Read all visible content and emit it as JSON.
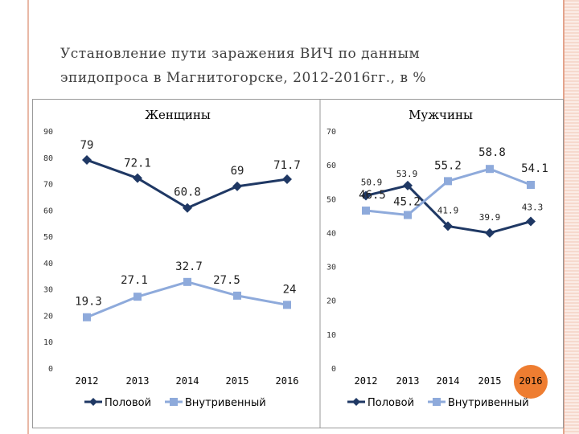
{
  "slide": {
    "title_line1": "Установление пути заражения ВИЧ по данным",
    "title_line2": "эпидопроса в Магнитогорске, 2012-2016гг., в %"
  },
  "colors": {
    "sexual": "#1f3864",
    "injection": "#8eaadb",
    "highlight": "#ee7d31"
  },
  "chart_data": [
    {
      "type": "line",
      "title": "Женщины",
      "x": [
        "2012",
        "2013",
        "2014",
        "2015",
        "2016"
      ],
      "ylim": [
        0,
        90
      ],
      "yticks": [
        0,
        10,
        20,
        30,
        40,
        50,
        60,
        70,
        80,
        90
      ],
      "grid": false,
      "legend": "bottom",
      "series": [
        {
          "name": "Половой",
          "values": [
            79,
            72.1,
            60.8,
            69,
            71.7
          ],
          "labels": [
            "79",
            "72.1",
            "60.8",
            "69",
            "71.7"
          ]
        },
        {
          "name": "Внутривенный",
          "values": [
            19.3,
            27.1,
            32.7,
            27.5,
            24
          ],
          "labels": [
            "19.3",
            "27.1",
            "32.7",
            "27.5",
            "24"
          ]
        }
      ]
    },
    {
      "type": "line",
      "title": "Мужчины",
      "x": [
        "2012",
        "2013",
        "2014",
        "2015",
        "2016"
      ],
      "ylim": [
        0,
        70
      ],
      "yticks": [
        0,
        10,
        20,
        30,
        40,
        50,
        60,
        70
      ],
      "grid": false,
      "legend": "bottom",
      "highlighted_x": "2016",
      "series": [
        {
          "name": "Половой",
          "values": [
            50.9,
            53.9,
            41.9,
            39.9,
            43.3
          ],
          "labels": [
            "50.9",
            "53.9",
            "41.9",
            "39.9",
            "43.3"
          ]
        },
        {
          "name": "Внутривенный",
          "values": [
            46.5,
            45.2,
            55.2,
            58.8,
            54.1
          ],
          "labels": [
            "46.5",
            "45.2",
            "55.2",
            "58.8",
            "54.1"
          ]
        }
      ]
    }
  ]
}
